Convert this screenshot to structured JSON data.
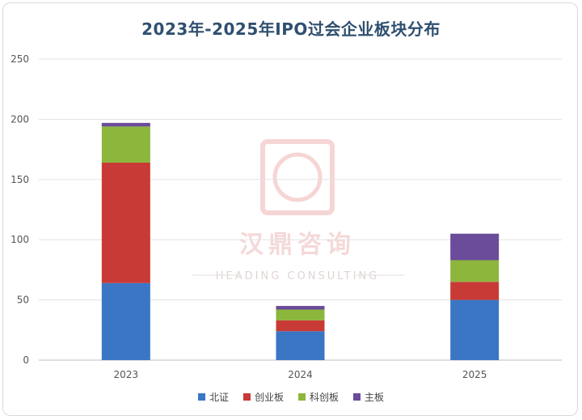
{
  "chart_data": {
    "type": "bar",
    "stacked": true,
    "title": "2023年-2025年IPO过会企业板块分布",
    "categories": [
      "2023",
      "2024",
      "2025"
    ],
    "series": [
      {
        "name": "北证",
        "color": "#3a76c4",
        "values": [
          64,
          24,
          50
        ]
      },
      {
        "name": "创业板",
        "color": "#c83a36",
        "values": [
          100,
          9,
          15
        ]
      },
      {
        "name": "科创板",
        "color": "#8cb63c",
        "values": [
          30,
          9,
          18
        ]
      },
      {
        "name": "主板",
        "color": "#6b4c9a",
        "values": [
          3,
          3,
          22
        ]
      }
    ],
    "yticks": [
      0,
      50,
      100,
      150,
      200,
      250
    ],
    "ylim": [
      0,
      250
    ],
    "grid": true,
    "legend_position": "bottom"
  },
  "watermark": {
    "logo_text": "汉鼎咨询",
    "sub_text": "HEADING CONSULTING"
  }
}
